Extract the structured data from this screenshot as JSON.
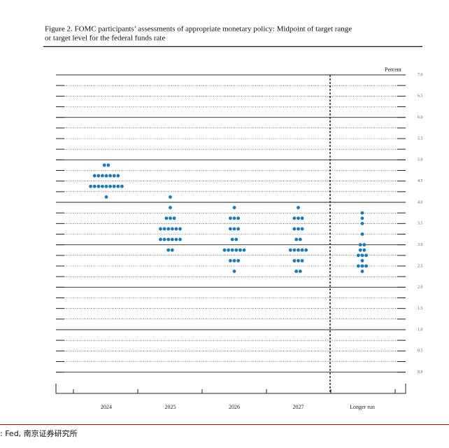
{
  "chart_data": {
    "type": "dot",
    "title": [
      "Figure 2.  FOMC participants’ assessments of appropriate monetary policy:  Midpoint of target range",
      "or target level for the federal funds rate"
    ],
    "y_axis_label": "Percent",
    "source": ":  Fed, 南京证券研究所",
    "color": "#1c79b4",
    "categories": [
      "2024",
      "2025",
      "2026",
      "2027",
      "Longer run"
    ],
    "values": [
      [
        4.875,
        4.875,
        4.625,
        4.625,
        4.625,
        4.625,
        4.625,
        4.625,
        4.625,
        4.375,
        4.375,
        4.375,
        4.375,
        4.375,
        4.375,
        4.375,
        4.375,
        4.375,
        4.125
      ],
      [
        4.125,
        3.875,
        3.625,
        3.625,
        3.625,
        3.375,
        3.375,
        3.375,
        3.375,
        3.375,
        3.375,
        3.125,
        3.125,
        3.125,
        3.125,
        3.125,
        3.125,
        2.875,
        2.875
      ],
      [
        3.875,
        3.625,
        3.625,
        3.625,
        3.375,
        3.375,
        3.375,
        3.125,
        3.125,
        2.875,
        2.875,
        2.875,
        2.875,
        2.875,
        2.875,
        2.625,
        2.625,
        2.625,
        2.375
      ],
      [
        3.875,
        3.625,
        3.625,
        3.625,
        3.375,
        3.375,
        3.375,
        3.125,
        3.125,
        2.875,
        2.875,
        2.875,
        2.875,
        2.875,
        2.625,
        2.625,
        2.625,
        2.375,
        2.375
      ],
      [
        3.75,
        3.625,
        3.5,
        3.25,
        3.0,
        3.0,
        2.875,
        2.875,
        2.75,
        2.75,
        2.75,
        2.625,
        2.5,
        2.5,
        2.5,
        2.375
      ]
    ],
    "ylim": [
      -0.5,
      7
    ],
    "yticks": [
      {
        "value": 0,
        "label": "0.0"
      },
      0.5,
      {
        "value": 1,
        "label": "1.0"
      },
      1.5,
      {
        "value": 2,
        "label": "2.0"
      },
      2.5,
      {
        "value": 3,
        "label": "3.0"
      },
      3.5,
      {
        "value": 4,
        "label": "4.0"
      },
      4.5,
      {
        "value": 5,
        "label": "5.0"
      },
      5.5,
      {
        "value": 6,
        "label": "6.0"
      },
      6.5,
      {
        "value": 7,
        "label": "7.0"
      }
    ],
    "grid": true
  }
}
